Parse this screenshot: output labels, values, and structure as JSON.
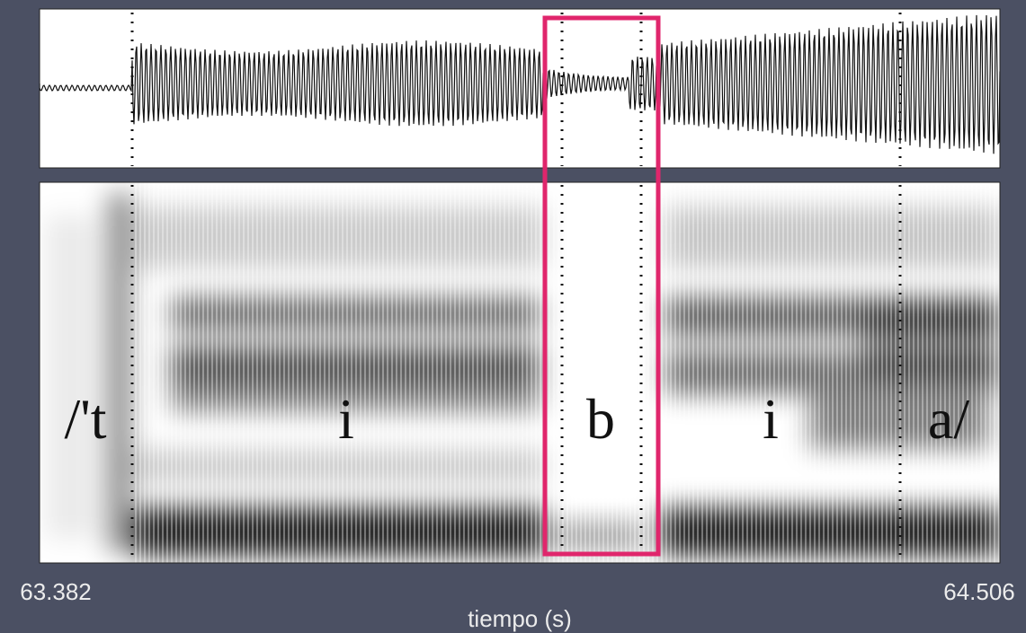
{
  "figure": {
    "segments": [
      "/'t",
      "i",
      "b",
      "i",
      "a/"
    ],
    "axis": {
      "start": "63.382",
      "end": "64.506",
      "label": "tiempo (s)"
    }
  }
}
